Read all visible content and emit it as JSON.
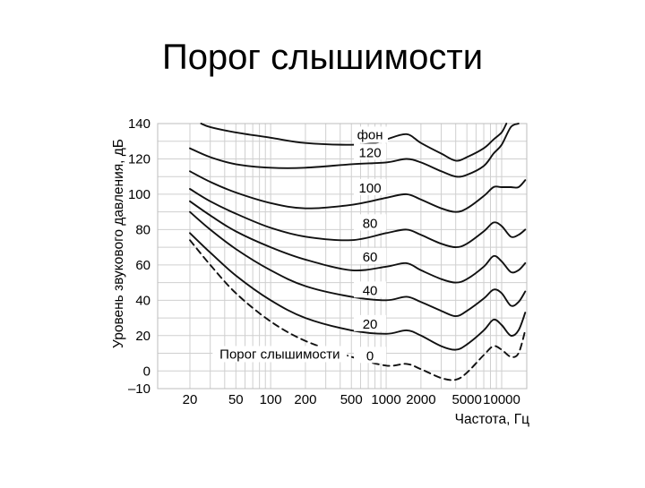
{
  "slide": {
    "title": "Порог слышимости"
  },
  "chart_data": {
    "type": "line",
    "title": "",
    "xlabel": "Частота, Гц",
    "ylabel": "Уровень звукового давления, дБ",
    "xscale": "log",
    "xlim": [
      20,
      16000
    ],
    "ylim": [
      -10,
      140
    ],
    "grid": true,
    "x_ticks": [
      20,
      50,
      100,
      200,
      500,
      1000,
      2000,
      5000,
      10000
    ],
    "x_tick_labels": [
      "20",
      "50",
      "100",
      "200",
      "500",
      "1000",
      "2000",
      "5000",
      "10000"
    ],
    "y_ticks": [
      140,
      120,
      100,
      80,
      60,
      40,
      20,
      0,
      -10
    ],
    "y_tick_labels": [
      "140",
      "120",
      "100",
      "80",
      "60",
      "40",
      "20",
      "0",
      "–10"
    ],
    "unit_label": "фон",
    "curve_label_frequency": 1000,
    "series": [
      {
        "name": "0",
        "dashed": true,
        "points": [
          [
            20,
            74
          ],
          [
            30,
            60
          ],
          [
            50,
            44
          ],
          [
            100,
            28
          ],
          [
            200,
            17
          ],
          [
            500,
            8
          ],
          [
            1000,
            3
          ],
          [
            1500,
            4
          ],
          [
            2000,
            1
          ],
          [
            3000,
            -4
          ],
          [
            4000,
            -5
          ],
          [
            5000,
            -1
          ],
          [
            7000,
            9
          ],
          [
            8500,
            14
          ],
          [
            10000,
            12
          ],
          [
            12000,
            8
          ],
          [
            14000,
            10
          ],
          [
            16000,
            23
          ]
        ]
      },
      {
        "name": "20",
        "points": [
          [
            20,
            78
          ],
          [
            30,
            67
          ],
          [
            50,
            54
          ],
          [
            100,
            40
          ],
          [
            200,
            30
          ],
          [
            500,
            23
          ],
          [
            1000,
            21
          ],
          [
            1500,
            23
          ],
          [
            2000,
            20
          ],
          [
            3000,
            14
          ],
          [
            4000,
            12
          ],
          [
            5000,
            15
          ],
          [
            7000,
            23
          ],
          [
            8500,
            29
          ],
          [
            10000,
            26
          ],
          [
            12000,
            20
          ],
          [
            14000,
            23
          ],
          [
            16000,
            33
          ]
        ]
      },
      {
        "name": "40",
        "points": [
          [
            20,
            90
          ],
          [
            30,
            80
          ],
          [
            50,
            69
          ],
          [
            100,
            57
          ],
          [
            200,
            48
          ],
          [
            500,
            42
          ],
          [
            1000,
            40
          ],
          [
            1500,
            42
          ],
          [
            2000,
            39
          ],
          [
            3000,
            34
          ],
          [
            4000,
            31
          ],
          [
            5000,
            34
          ],
          [
            7000,
            41
          ],
          [
            8500,
            46
          ],
          [
            10000,
            44
          ],
          [
            12000,
            37
          ],
          [
            14000,
            39
          ],
          [
            16000,
            45
          ]
        ]
      },
      {
        "name": "60",
        "points": [
          [
            20,
            96
          ],
          [
            30,
            88
          ],
          [
            50,
            79
          ],
          [
            100,
            70
          ],
          [
            200,
            63
          ],
          [
            500,
            57
          ],
          [
            1000,
            59
          ],
          [
            1500,
            61
          ],
          [
            2000,
            57
          ],
          [
            3000,
            52
          ],
          [
            4000,
            50
          ],
          [
            5000,
            52
          ],
          [
            7000,
            59
          ],
          [
            8500,
            65
          ],
          [
            10000,
            62
          ],
          [
            12000,
            56
          ],
          [
            14000,
            57
          ],
          [
            16000,
            61
          ]
        ]
      },
      {
        "name": "80",
        "points": [
          [
            20,
            103
          ],
          [
            30,
            96
          ],
          [
            50,
            89
          ],
          [
            100,
            81
          ],
          [
            200,
            76
          ],
          [
            500,
            74
          ],
          [
            1000,
            78
          ],
          [
            1500,
            80
          ],
          [
            2000,
            77
          ],
          [
            3000,
            72
          ],
          [
            4000,
            70
          ],
          [
            5000,
            72
          ],
          [
            7000,
            79
          ],
          [
            8500,
            84
          ],
          [
            10000,
            82
          ],
          [
            12000,
            76
          ],
          [
            14000,
            77
          ],
          [
            16000,
            80
          ]
        ]
      },
      {
        "name": "100",
        "points": [
          [
            20,
            113
          ],
          [
            30,
            107
          ],
          [
            50,
            101
          ],
          [
            100,
            95
          ],
          [
            200,
            92
          ],
          [
            500,
            94
          ],
          [
            1000,
            98
          ],
          [
            1500,
            100
          ],
          [
            2000,
            97
          ],
          [
            3000,
            92
          ],
          [
            4000,
            90
          ],
          [
            5000,
            92
          ],
          [
            7000,
            99
          ],
          [
            8500,
            104
          ],
          [
            10000,
            104
          ],
          [
            12000,
            104
          ],
          [
            14000,
            104
          ],
          [
            16000,
            108
          ]
        ]
      },
      {
        "name": "120",
        "points": [
          [
            20,
            126
          ],
          [
            30,
            121
          ],
          [
            50,
            117
          ],
          [
            100,
            115
          ],
          [
            200,
            115
          ],
          [
            500,
            117
          ],
          [
            1000,
            118
          ],
          [
            1500,
            120
          ],
          [
            2000,
            118
          ],
          [
            3000,
            113
          ],
          [
            4000,
            110
          ],
          [
            5000,
            111
          ],
          [
            7000,
            116
          ],
          [
            8500,
            123
          ],
          [
            10000,
            128
          ],
          [
            12000,
            138
          ],
          [
            14000,
            140
          ]
        ]
      },
      {
        "name": "",
        "points": [
          [
            25,
            140
          ],
          [
            30,
            138
          ],
          [
            50,
            135
          ],
          [
            100,
            132
          ],
          [
            200,
            129
          ],
          [
            500,
            128
          ],
          [
            800,
            129
          ],
          [
            1000,
            131
          ],
          [
            1500,
            134
          ],
          [
            2000,
            129
          ],
          [
            3000,
            123
          ],
          [
            4000,
            119
          ],
          [
            5000,
            121
          ],
          [
            7000,
            126
          ],
          [
            8500,
            131
          ],
          [
            10000,
            135
          ],
          [
            11000,
            140
          ]
        ]
      }
    ],
    "annotations": [
      {
        "text": "Порог слышимости",
        "x": 120,
        "y": 7
      }
    ]
  }
}
